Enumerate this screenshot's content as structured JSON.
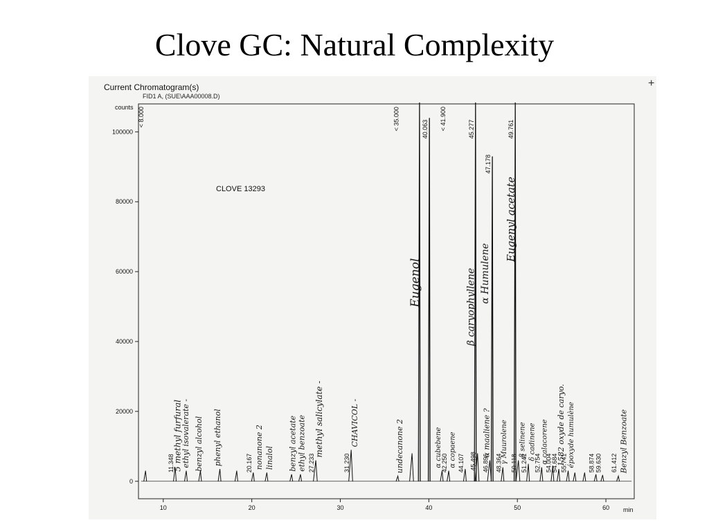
{
  "slide": {
    "title": "Clove GC: Natural Complexity"
  },
  "chart_header": {
    "heading": "Current Chromatogram(s)",
    "signal": "FID1 A, (SUE\\AAA00008.D)",
    "sample": "CLOVE 13293",
    "corner_mark": "+"
  },
  "chart_data": {
    "type": "line",
    "xlabel": "min",
    "ylabel": "counts",
    "xlim": [
      7.2,
      63.2
    ],
    "ylim": [
      -5000,
      108000
    ],
    "x_ticks": [
      10,
      20,
      30,
      40,
      50,
      60
    ],
    "y_ticks": [
      0,
      20000,
      40000,
      60000,
      80000,
      100000
    ],
    "x_tick_labels": [
      "10",
      "20",
      "30",
      "40",
      "50",
      "60"
    ],
    "y_tick_labels": [
      "0",
      "20000",
      "40000",
      "60000",
      "80000",
      "100000"
    ],
    "peaks": [
      {
        "rt": 8.0,
        "height": 3000
      },
      {
        "rt": 11.348,
        "height": 4000
      },
      {
        "rt": 12.6,
        "height": 3000
      },
      {
        "rt": 14.2,
        "height": 3000
      },
      {
        "rt": 16.4,
        "height": 3500
      },
      {
        "rt": 18.3,
        "height": 3000
      },
      {
        "rt": 20.167,
        "height": 2500
      },
      {
        "rt": 21.7,
        "height": 2500
      },
      {
        "rt": 24.5,
        "height": 2000
      },
      {
        "rt": 25.5,
        "height": 2000
      },
      {
        "rt": 27.233,
        "height": 6000
      },
      {
        "rt": 31.23,
        "height": 9000
      },
      {
        "rt": 36.5,
        "height": 1500
      },
      {
        "rt": 38.1,
        "height": 8000
      },
      {
        "rt": 38.95,
        "height": 110000
      },
      {
        "rt": 40.063,
        "height": 104000
      },
      {
        "rt": 41.5,
        "height": 3000
      },
      {
        "rt": 42.25,
        "height": 3000
      },
      {
        "rt": 44.107,
        "height": 3500
      },
      {
        "rt": 45.277,
        "height": 110000
      },
      {
        "rt": 45.498,
        "height": 8000
      },
      {
        "rt": 46.896,
        "height": 6000
      },
      {
        "rt": 47.178,
        "height": 93000
      },
      {
        "rt": 48.364,
        "height": 4000
      },
      {
        "rt": 49.761,
        "height": 110000
      },
      {
        "rt": 50.118,
        "height": 6000
      },
      {
        "rt": 51.241,
        "height": 5000
      },
      {
        "rt": 52.754,
        "height": 4000
      },
      {
        "rt": 54.004,
        "height": 4500
      },
      {
        "rt": 54.684,
        "height": 3500
      },
      {
        "rt": 55.741,
        "height": 3000
      },
      {
        "rt": 56.5,
        "height": 2500
      },
      {
        "rt": 57.6,
        "height": 2500
      },
      {
        "rt": 58.874,
        "height": 2000
      },
      {
        "rt": 59.63,
        "height": 1800
      },
      {
        "rt": 61.412,
        "height": 1500
      }
    ],
    "printed_labels": [
      {
        "x": 11.348,
        "y": 2500,
        "text": "11.348"
      },
      {
        "x": 20.167,
        "y": 2500,
        "text": "20.167"
      },
      {
        "x": 27.233,
        "y": 2500,
        "text": "27.233"
      },
      {
        "x": 31.23,
        "y": 2500,
        "text": "31.230"
      },
      {
        "x": 40.063,
        "y": 103500,
        "text": "40.063"
      },
      {
        "x": 42.25,
        "y": 2500,
        "text": "42.250"
      },
      {
        "x": 44.107,
        "y": 2500,
        "text": "44.107"
      },
      {
        "x": 45.277,
        "y": 103500,
        "text": "45.277"
      },
      {
        "x": 45.498,
        "y": 3000,
        "text": "45.498"
      },
      {
        "x": 46.896,
        "y": 2500,
        "text": "46.896"
      },
      {
        "x": 47.178,
        "y": 93500,
        "text": "47.178"
      },
      {
        "x": 48.364,
        "y": 2500,
        "text": "48.364"
      },
      {
        "x": 49.761,
        "y": 103500,
        "text": "49.761"
      },
      {
        "x": 50.118,
        "y": 2500,
        "text": "50.118"
      },
      {
        "x": 51.241,
        "y": 2500,
        "text": "51.241"
      },
      {
        "x": 52.754,
        "y": 2500,
        "text": "52.754"
      },
      {
        "x": 54.004,
        "y": 2500,
        "text": "54.004"
      },
      {
        "x": 54.684,
        "y": 2500,
        "text": "54.684"
      },
      {
        "x": 55.741,
        "y": 2500,
        "text": "55.741"
      },
      {
        "x": 58.874,
        "y": 2500,
        "text": "58.874"
      },
      {
        "x": 59.63,
        "y": 2500,
        "text": "59.630"
      },
      {
        "x": 61.412,
        "y": 2500,
        "text": "61.412"
      },
      {
        "x": 8.0,
        "y": 108000,
        "text": "< 8.000"
      },
      {
        "x": 36.8,
        "y": 108000,
        "text": "< 35.000"
      },
      {
        "x": 42.1,
        "y": 108000,
        "text": "< 41.900"
      }
    ],
    "handwritten_annotations": [
      {
        "x": 11.6,
        "y": 2000,
        "size": 12,
        "text": "5 methyl furfural"
      },
      {
        "x": 12.5,
        "y": 3000,
        "size": 11,
        "text": "ethyl isovalerate -"
      },
      {
        "x": 14.0,
        "y": 2000,
        "size": 11,
        "text": "benzyl alcohol"
      },
      {
        "x": 16.1,
        "y": 3500,
        "size": 11,
        "text": "phenyl ethanol"
      },
      {
        "x": 20.8,
        "y": 2500,
        "size": 11,
        "text": "nonanone 2"
      },
      {
        "x": 22.0,
        "y": 2500,
        "size": 11,
        "text": "linalol"
      },
      {
        "x": 24.6,
        "y": 2000,
        "size": 11,
        "text": "benzyl acetate"
      },
      {
        "x": 25.6,
        "y": 2000,
        "size": 11,
        "text": "ethyl benzoate"
      },
      {
        "x": 27.6,
        "y": 6000,
        "size": 12,
        "text": "methyl salicylate -"
      },
      {
        "x": 31.6,
        "y": 9000,
        "size": 11,
        "text": "CHAVICOL -"
      },
      {
        "x": 36.7,
        "y": 1500,
        "size": 11,
        "text": "undecanone 2"
      },
      {
        "x": 38.55,
        "y": 49000,
        "size": 17,
        "text": "Eugenol"
      },
      {
        "x": 41.0,
        "y": 3000,
        "size": 10,
        "text": "α cubebene"
      },
      {
        "x": 42.6,
        "y": 3000,
        "size": 10,
        "text": "α copaene"
      },
      {
        "x": 44.8,
        "y": 38000,
        "size": 14,
        "text": "β caryophyllene"
      },
      {
        "x": 46.5,
        "y": 6000,
        "size": 11,
        "text": "α maaliene ?"
      },
      {
        "x": 46.4,
        "y": 50000,
        "size": 14,
        "text": "α Humulene"
      },
      {
        "x": 48.4,
        "y": 4000,
        "size": 10,
        "text": "γ Muurolene"
      },
      {
        "x": 49.35,
        "y": 62000,
        "size": 15,
        "text": "Eugenyl acetate"
      },
      {
        "x": 50.5,
        "y": 6000,
        "size": 10,
        "text": "β selinene"
      },
      {
        "x": 51.6,
        "y": 5000,
        "size": 10,
        "text": "δ cadinene"
      },
      {
        "x": 53.0,
        "y": 4000,
        "size": 10,
        "text": "α calacorene"
      },
      {
        "x": 54.9,
        "y": 3500,
        "size": 11,
        "text": "1582 oxyde de caryo."
      },
      {
        "x": 56.0,
        "y": 3000,
        "size": 10,
        "text": "époxyde humulène"
      },
      {
        "x": 62.0,
        "y": 1500,
        "size": 11,
        "text": "Benzyl Benzoate"
      }
    ]
  }
}
